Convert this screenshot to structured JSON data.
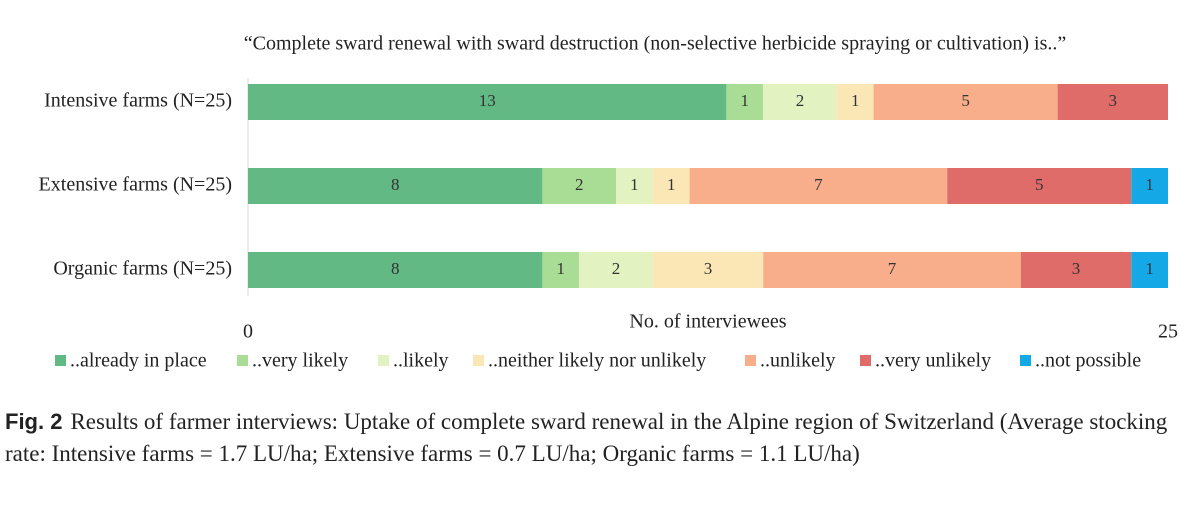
{
  "chart_data": {
    "type": "stacked-barh",
    "title": "“Complete sward renewal with sward destruction (non-selective herbicide spraying or cultivation) is..”",
    "categories": [
      "Intensive farms (N=25)",
      "Extensive farms (N=25)",
      "Organic farms (N=25)"
    ],
    "series": [
      {
        "name": "..already in place",
        "color": "#63b983",
        "values": [
          13,
          8,
          8
        ]
      },
      {
        "name": "..very likely",
        "color": "#a9dc95",
        "values": [
          1,
          2,
          1
        ]
      },
      {
        "name": "..likely",
        "color": "#e3f2c1",
        "values": [
          2,
          1,
          2
        ]
      },
      {
        "name": "..neither likely nor unlikely",
        "color": "#fbe7b6",
        "values": [
          1,
          1,
          3
        ]
      },
      {
        "name": "..unlikely",
        "color": "#f8ae8b",
        "values": [
          5,
          7,
          7
        ]
      },
      {
        "name": "..very unlikely",
        "color": "#e06c69",
        "values": [
          3,
          5,
          3
        ]
      },
      {
        "name": "..not possible",
        "color": "#14a8e6",
        "values": [
          0,
          1,
          1
        ]
      }
    ],
    "xlabel": "No. of interviewees",
    "xlim": [
      0,
      25
    ],
    "xticks": [
      0,
      25
    ],
    "legend": "bottom"
  },
  "caption": {
    "label": "Fig. 2",
    "text": "Results of farmer interviews: Uptake of complete sward renewal in the Alpine region of Switzerland (Average stocking rate: Intensive farms = 1.7 LU/ha; Extensive farms = 0.7 LU/ha; Organic farms = 1.1 LU/ha)"
  }
}
